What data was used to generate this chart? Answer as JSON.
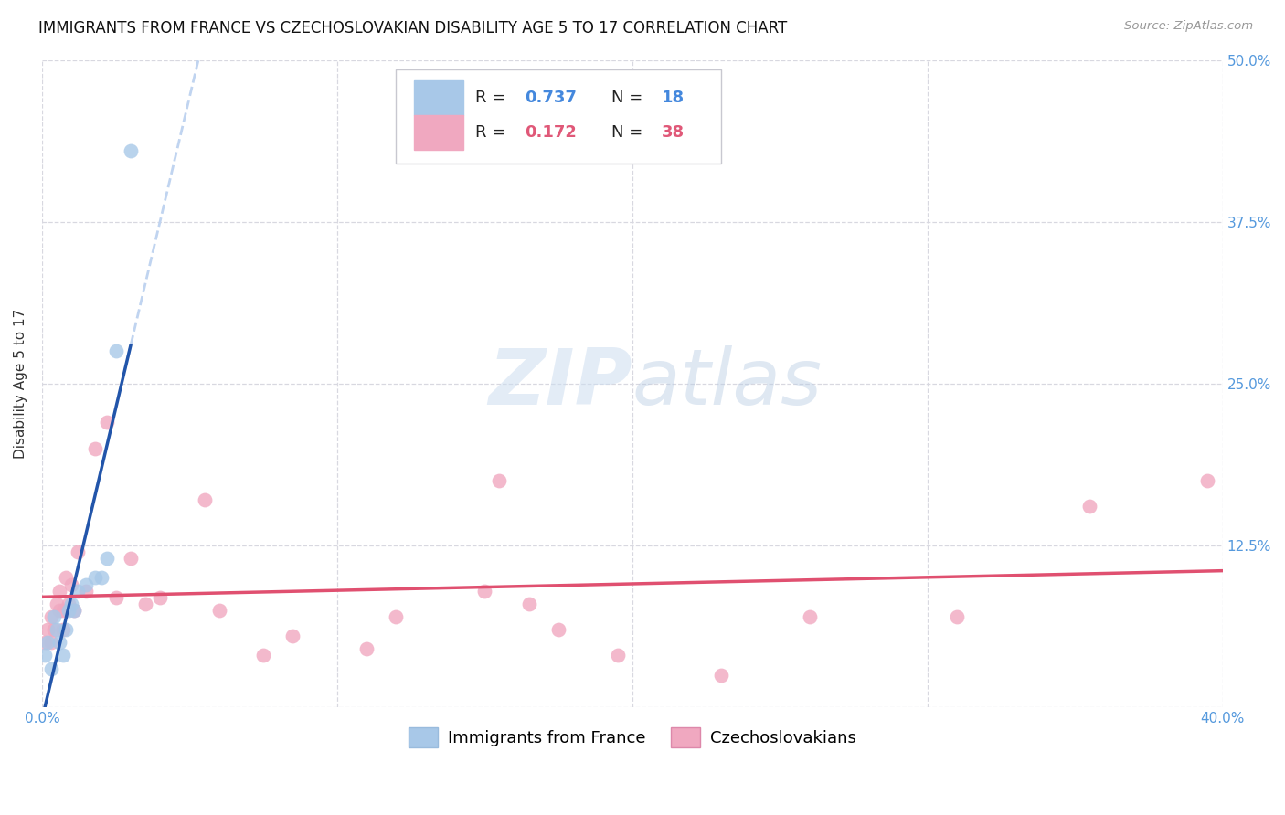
{
  "title": "IMMIGRANTS FROM FRANCE VS CZECHOSLOVAKIAN DISABILITY AGE 5 TO 17 CORRELATION CHART",
  "source": "Source: ZipAtlas.com",
  "ylabel_label": "Disability Age 5 to 17",
  "xlim": [
    0.0,
    0.4
  ],
  "ylim": [
    0.0,
    0.5
  ],
  "xticks": [
    0.0,
    0.1,
    0.2,
    0.3,
    0.4
  ],
  "xtick_labels": [
    "0.0%",
    "",
    "",
    "",
    "40.0%"
  ],
  "yticks": [
    0.0,
    0.125,
    0.25,
    0.375,
    0.5
  ],
  "ytick_labels": [
    "",
    "12.5%",
    "25.0%",
    "37.5%",
    "50.0%"
  ],
  "france_R": "0.737",
  "france_N": "18",
  "czech_R": "0.172",
  "czech_N": "38",
  "france_color": "#a8c8e8",
  "czech_color": "#f0a8c0",
  "france_line_color": "#2255aa",
  "czech_line_color": "#e05070",
  "france_dash_color": "#c0d4f0",
  "legend_france_label": "Immigrants from France",
  "legend_czech_label": "Czechoslovakians",
  "france_x": [
    0.001,
    0.002,
    0.003,
    0.004,
    0.005,
    0.006,
    0.007,
    0.008,
    0.009,
    0.01,
    0.011,
    0.012,
    0.015,
    0.018,
    0.02,
    0.022,
    0.025,
    0.03
  ],
  "france_y": [
    0.04,
    0.05,
    0.03,
    0.07,
    0.06,
    0.05,
    0.04,
    0.06,
    0.075,
    0.08,
    0.075,
    0.09,
    0.095,
    0.1,
    0.1,
    0.115,
    0.275,
    0.43
  ],
  "czech_x": [
    0.001,
    0.002,
    0.003,
    0.003,
    0.004,
    0.005,
    0.006,
    0.006,
    0.007,
    0.007,
    0.008,
    0.009,
    0.01,
    0.011,
    0.012,
    0.015,
    0.018,
    0.022,
    0.025,
    0.03,
    0.035,
    0.04,
    0.055,
    0.06,
    0.075,
    0.085,
    0.11,
    0.12,
    0.15,
    0.155,
    0.165,
    0.175,
    0.195,
    0.23,
    0.26,
    0.31,
    0.355,
    0.395
  ],
  "czech_y": [
    0.05,
    0.06,
    0.07,
    0.05,
    0.06,
    0.08,
    0.09,
    0.075,
    0.06,
    0.075,
    0.1,
    0.08,
    0.095,
    0.075,
    0.12,
    0.09,
    0.2,
    0.22,
    0.085,
    0.115,
    0.08,
    0.085,
    0.16,
    0.075,
    0.04,
    0.055,
    0.045,
    0.07,
    0.09,
    0.175,
    0.08,
    0.06,
    0.04,
    0.025,
    0.07,
    0.07,
    0.155,
    0.175
  ],
  "watermark_zip": "ZIP",
  "watermark_atlas": "atlas",
  "background_color": "#ffffff",
  "grid_color": "#d8d8e0",
  "title_fontsize": 12,
  "axis_label_fontsize": 11,
  "tick_fontsize": 11,
  "legend_fontsize": 13,
  "r_color_france": "#4488dd",
  "r_color_czech": "#e05878",
  "legend_text_color": "#222222"
}
